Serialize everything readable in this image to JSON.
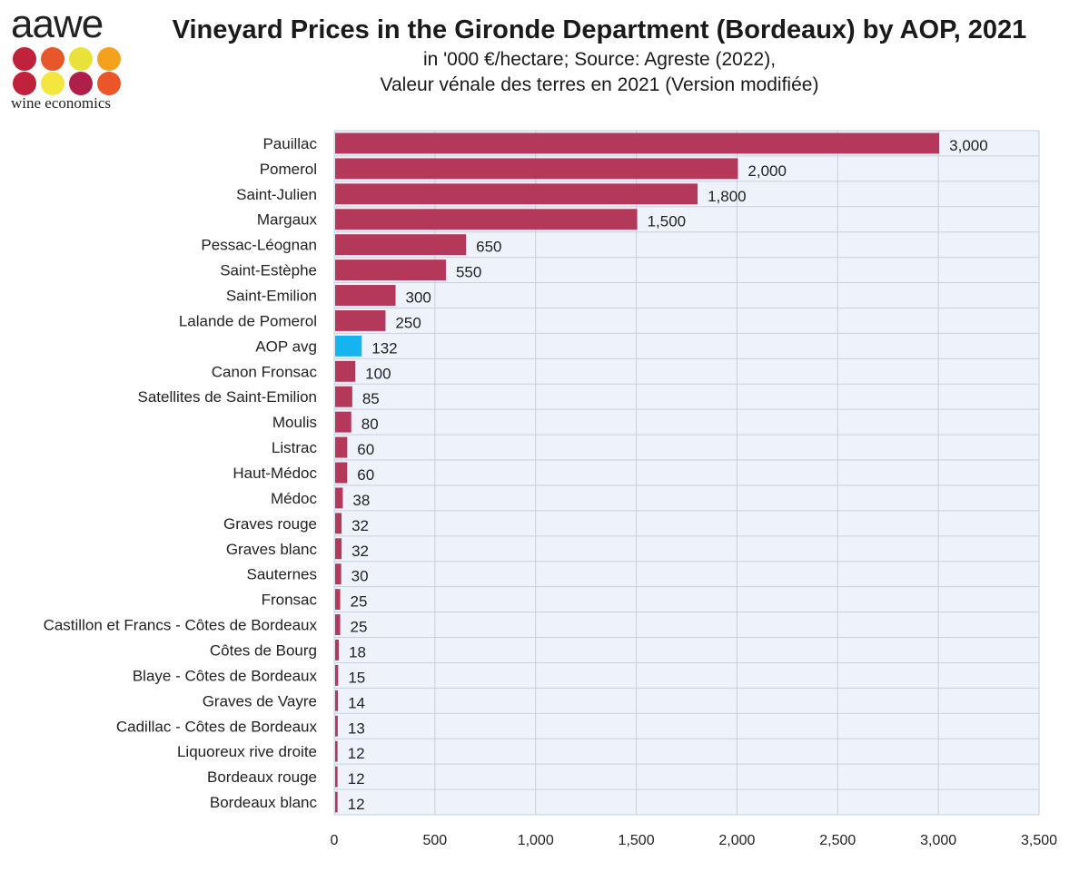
{
  "logo": {
    "wordmark": "aawe",
    "tagline": "wine economics",
    "dot_colors": [
      "#c0223b",
      "#e8572a",
      "#e9e23b",
      "#f4a21d",
      "#c0223b",
      "#f3e640",
      "#b01f4a",
      "#e8562a"
    ]
  },
  "header": {
    "title": "Vineyard Prices in the Gironde Department (Bordeaux) by AOP, 2021",
    "subtitle_line1": "in '000 €/hectare; Source: Agreste (2022),",
    "subtitle_line2": "Valeur vénale des terres en 2021 (Version modifiée)"
  },
  "colors": {
    "bar": "#b3385a",
    "highlight": "#16b4ee",
    "plot_bg": "#eef2fb",
    "grid": "#c9cfdb"
  },
  "chart_data": {
    "type": "bar",
    "orientation": "horizontal",
    "categories": [
      "Pauillac",
      "Pomerol",
      "Saint-Julien",
      "Margaux",
      "Pessac-Léognan",
      "Saint-Estèphe",
      "Saint-Emilion",
      "Lalande de Pomerol",
      "AOP avg",
      "Canon Fronsac",
      "Satellites de Saint-Emilion",
      "Moulis",
      "Listrac",
      "Haut-Médoc",
      "Médoc",
      "Graves rouge",
      "Graves blanc",
      "Sauternes",
      "Fronsac",
      "Castillon et Francs - Côtes de Bordeaux",
      "Côtes de Bourg",
      "Blaye - Côtes de Bordeaux",
      "Graves de Vayre",
      "Cadillac - Côtes de Bordeaux",
      "Liquoreux rive droite",
      "Bordeaux rouge",
      "Bordeaux blanc"
    ],
    "values": [
      3000,
      2000,
      1800,
      1500,
      650,
      550,
      300,
      250,
      132,
      100,
      85,
      80,
      60,
      60,
      38,
      32,
      32,
      30,
      25,
      25,
      18,
      15,
      14,
      13,
      12,
      12,
      12
    ],
    "value_labels": [
      "3,000",
      "2,000",
      "1,800",
      "1,500",
      "650",
      "550",
      "300",
      "250",
      "132",
      "100",
      "85",
      "80",
      "60",
      "60",
      "38",
      "32",
      "32",
      "30",
      "25",
      "25",
      "18",
      "15",
      "14",
      "13",
      "12",
      "12",
      "12"
    ],
    "highlight_category": "AOP avg",
    "xlim": [
      0,
      3500
    ],
    "x_ticks": [
      0,
      500,
      1000,
      1500,
      2000,
      2500,
      3000,
      3500
    ],
    "x_tick_labels": [
      "0",
      "500",
      "1,000",
      "1,500",
      "2,000",
      "2,500",
      "3,000",
      "3,500"
    ],
    "grid": true,
    "legend": "none"
  }
}
